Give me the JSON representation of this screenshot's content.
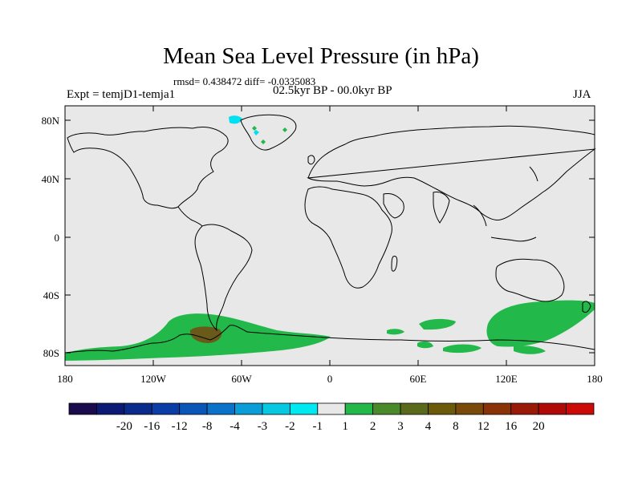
{
  "title": "Mean Sea Level Pressure (in hPa)",
  "stats": "rmsd= 0.438472 diff= -0.0335083",
  "experiment": "Expt = temjD1-temja1",
  "period": "02.5kyr BP - 00.0kyr BP",
  "season": "JJA",
  "lat_labels": [
    "80N",
    "40N",
    "0",
    "40S",
    "80S"
  ],
  "lon_labels": [
    "180",
    "120W",
    "60W",
    "0",
    "60E",
    "120E",
    "180"
  ],
  "colorbar": {
    "labels": [
      "-20",
      "-16",
      "-12",
      "-8",
      "-4",
      "-3",
      "-2",
      "-1",
      "1",
      "2",
      "3",
      "4",
      "8",
      "12",
      "16",
      "20"
    ],
    "colors": [
      "#1a0b4d",
      "#0d1a75",
      "#0a2a8c",
      "#0a3ea6",
      "#0a55b8",
      "#0a72c8",
      "#0a9dd8",
      "#06c8e0",
      "#00e8f0",
      "#e8e8e8",
      "#22b84a",
      "#4a8a2a",
      "#5a6a1a",
      "#6a5a0a",
      "#7a4a0a",
      "#8a3208",
      "#9a1a08",
      "#b00a08",
      "#cc0a08"
    ]
  },
  "colors": {
    "ocean": "#e8e8e8",
    "land_outline": "#000000",
    "positive_1_2": "#22b84a",
    "positive_3_4": "#6a5a1a",
    "negative_minus1": "#00e0f0"
  }
}
